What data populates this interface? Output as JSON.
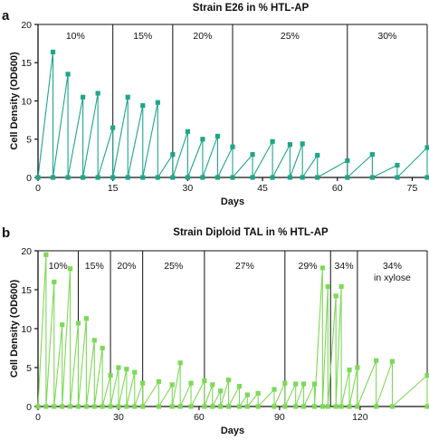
{
  "chart_data": [
    {
      "panel": "a",
      "type": "line",
      "title": "Strain E26 in % HTL-AP",
      "xlabel": "Days",
      "ylabel": "Cell Density (OD600)",
      "xlim": [
        0,
        78
      ],
      "ylim": [
        0,
        20
      ],
      "xticks": [
        0,
        15,
        30,
        45,
        60,
        75
      ],
      "yticks": [
        0,
        5,
        10,
        15,
        20
      ],
      "color": "#1fa58a",
      "segment_dividers": [
        15,
        27,
        39,
        62
      ],
      "segments": [
        {
          "label": "10%",
          "from": 0,
          "to": 15
        },
        {
          "label": "15%",
          "from": 15,
          "to": 27
        },
        {
          "label": "20%",
          "from": 27,
          "to": 39
        },
        {
          "label": "25%",
          "from": 39,
          "to": 62
        },
        {
          "label": "30%",
          "from": 62,
          "to": 78
        }
      ],
      "cycles": [
        {
          "start": 0,
          "peak_x": 3,
          "peak_y": 16.4
        },
        {
          "start": 3,
          "peak_x": 6,
          "peak_y": 13.5
        },
        {
          "start": 6,
          "peak_x": 9,
          "peak_y": 10.5
        },
        {
          "start": 9,
          "peak_x": 12,
          "peak_y": 11.0
        },
        {
          "start": 12,
          "peak_x": 15,
          "peak_y": 6.5
        },
        {
          "start": 15,
          "peak_x": 18,
          "peak_y": 10.5
        },
        {
          "start": 18,
          "peak_x": 21,
          "peak_y": 9.4
        },
        {
          "start": 21,
          "peak_x": 24,
          "peak_y": 9.8
        },
        {
          "start": 24,
          "peak_x": 27,
          "peak_y": 3.0
        },
        {
          "start": 27,
          "peak_x": 30,
          "peak_y": 6.0
        },
        {
          "start": 30,
          "peak_x": 33,
          "peak_y": 5.0
        },
        {
          "start": 33,
          "peak_x": 36,
          "peak_y": 5.4
        },
        {
          "start": 36,
          "peak_x": 39,
          "peak_y": 4.0
        },
        {
          "start": 39,
          "peak_x": 43,
          "peak_y": 3.0
        },
        {
          "start": 43,
          "peak_x": 47,
          "peak_y": 4.7
        },
        {
          "start": 47,
          "peak_x": 50.5,
          "peak_y": 4.3
        },
        {
          "start": 50.5,
          "peak_x": 53,
          "peak_y": 4.4
        },
        {
          "start": 53,
          "peak_x": 56,
          "peak_y": 2.9
        },
        {
          "start": 56,
          "peak_x": 62,
          "peak_y": 2.2
        },
        {
          "start": 62,
          "peak_x": 67,
          "peak_y": 3.0
        },
        {
          "start": 67,
          "peak_x": 72,
          "peak_y": 1.6
        },
        {
          "start": 72,
          "peak_x": 78,
          "peak_y": 3.9
        }
      ]
    },
    {
      "panel": "b",
      "type": "line",
      "title": "Strain Diploid TAL in % HTL-AP",
      "xlabel": "Days",
      "ylabel": "Cell Density (OD600)",
      "xlim": [
        0,
        145
      ],
      "ylim": [
        0,
        20
      ],
      "xticks": [
        0,
        30,
        60,
        90,
        120
      ],
      "yticks": [
        0,
        5,
        10,
        15,
        20
      ],
      "color": "#7ed957",
      "segment_dividers": [
        15,
        27,
        39,
        62,
        92,
        109,
        119
      ],
      "segments": [
        {
          "label": "10%",
          "from": 0,
          "to": 15
        },
        {
          "label": "15%",
          "from": 15,
          "to": 27
        },
        {
          "label": "20%",
          "from": 27,
          "to": 39
        },
        {
          "label": "25%",
          "from": 39,
          "to": 62
        },
        {
          "label": "27%",
          "from": 62,
          "to": 92
        },
        {
          "label": "29%",
          "from": 92,
          "to": 109
        },
        {
          "label": "34%",
          "from": 109,
          "to": 119
        },
        {
          "label": "34%",
          "sublabel": "in xylose",
          "from": 119,
          "to": 145
        }
      ],
      "cycles": [
        {
          "start": 0,
          "peak_x": 3,
          "peak_y": 19.5
        },
        {
          "start": 3,
          "peak_x": 6,
          "peak_y": 16.0
        },
        {
          "start": 6,
          "peak_x": 9,
          "peak_y": 10.5
        },
        {
          "start": 9,
          "peak_x": 12,
          "peak_y": 17.7
        },
        {
          "start": 12,
          "peak_x": 15,
          "peak_y": 10.7
        },
        {
          "start": 15,
          "peak_x": 18,
          "peak_y": 11.3
        },
        {
          "start": 18,
          "peak_x": 21,
          "peak_y": 8.5
        },
        {
          "start": 21,
          "peak_x": 24,
          "peak_y": 7.5
        },
        {
          "start": 24,
          "peak_x": 27,
          "peak_y": 4.0
        },
        {
          "start": 27,
          "peak_x": 30,
          "peak_y": 5.0
        },
        {
          "start": 30,
          "peak_x": 33,
          "peak_y": 4.8
        },
        {
          "start": 33,
          "peak_x": 36,
          "peak_y": 4.4
        },
        {
          "start": 36,
          "peak_x": 39,
          "peak_y": 3.0
        },
        {
          "start": 39,
          "peak_x": 45,
          "peak_y": 3.2
        },
        {
          "start": 45,
          "peak_x": 50,
          "peak_y": 2.8
        },
        {
          "start": 50,
          "peak_x": 53,
          "peak_y": 5.6
        },
        {
          "start": 53,
          "peak_x": 57,
          "peak_y": 3.0
        },
        {
          "start": 57,
          "peak_x": 62,
          "peak_y": 3.3
        },
        {
          "start": 62,
          "peak_x": 65,
          "peak_y": 2.8
        },
        {
          "start": 65,
          "peak_x": 68,
          "peak_y": 2.0
        },
        {
          "start": 68,
          "peak_x": 71,
          "peak_y": 3.4
        },
        {
          "start": 71,
          "peak_x": 75,
          "peak_y": 2.6
        },
        {
          "start": 75,
          "peak_x": 78,
          "peak_y": 1.5
        },
        {
          "start": 78,
          "peak_x": 82,
          "peak_y": 1.7
        },
        {
          "start": 82,
          "peak_x": 88,
          "peak_y": 2.2
        },
        {
          "start": 88,
          "peak_x": 92,
          "peak_y": 3.0
        },
        {
          "start": 92,
          "peak_x": 96,
          "peak_y": 2.9
        },
        {
          "start": 96,
          "peak_x": 99,
          "peak_y": 2.9
        },
        {
          "start": 99,
          "peak_x": 103,
          "peak_y": 2.9
        },
        {
          "start": 103,
          "peak_x": 106,
          "peak_y": 17.8
        },
        {
          "start": 106,
          "peak_x": 108,
          "peak_y": 15.4
        },
        {
          "start": 108,
          "peak_x": 111,
          "peak_y": 14.2
        },
        {
          "start": 111,
          "peak_x": 113,
          "peak_y": 15.4
        },
        {
          "start": 113,
          "peak_x": 116,
          "peak_y": 4.7
        },
        {
          "start": 116,
          "peak_x": 119,
          "peak_y": 5.0
        },
        {
          "start": 119,
          "peak_x": 126,
          "peak_y": 5.9
        },
        {
          "start": 126,
          "peak_x": 132,
          "peak_y": 5.8
        },
        {
          "start": 132,
          "peak_x": 145,
          "peak_y": 4.0
        }
      ]
    }
  ]
}
